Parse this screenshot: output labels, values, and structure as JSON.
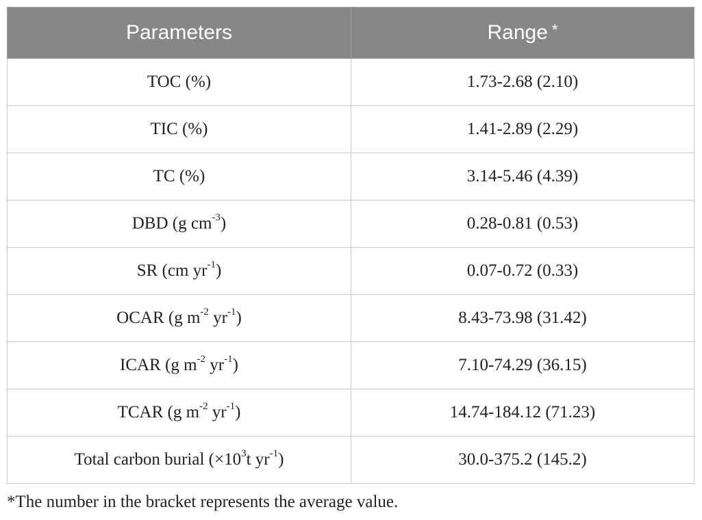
{
  "table": {
    "header": {
      "parameters": "Parameters",
      "range": "Range",
      "range_marker": "*"
    },
    "rows": [
      {
        "param": {
          "base": "TOC (%)"
        },
        "range": "1.73-2.68 (2.10)"
      },
      {
        "param": {
          "base": "TIC (%)"
        },
        "range": "1.41-2.89 (2.29)"
      },
      {
        "param": {
          "base": "TC (%)"
        },
        "range": "3.14-5.46 (4.39)"
      },
      {
        "param": {
          "base": "DBD (g cm",
          "sup1": "-3",
          "tail": ")"
        },
        "range": "0.28-0.81 (0.53)"
      },
      {
        "param": {
          "base": "SR (cm yr",
          "sup1": "-1",
          "tail": ")"
        },
        "range": "0.07-0.72 (0.33)"
      },
      {
        "param": {
          "base": "OCAR (g m",
          "sup1": "-2",
          "mid": " yr",
          "sup2": "-1",
          "tail": ")"
        },
        "range": "8.43-73.98 (31.42)"
      },
      {
        "param": {
          "base": "ICAR (g m",
          "sup1": "-2",
          "mid": " yr",
          "sup2": "-1",
          "tail": ")"
        },
        "range": "7.10-74.29 (36.15)"
      },
      {
        "param": {
          "base": "TCAR (g m",
          "sup1": "-2",
          "mid": " yr",
          "sup2": "-1",
          "tail": ")"
        },
        "range": "14.74-184.12 (71.23)"
      },
      {
        "param": {
          "base": "Total carbon burial (×10",
          "sup1": "3",
          "mid": "t yr",
          "sup2": "-1",
          "tail": ")"
        },
        "range": "30.0-375.2 (145.2)"
      }
    ]
  },
  "footnote": "*The number in the bracket represents the average value."
}
